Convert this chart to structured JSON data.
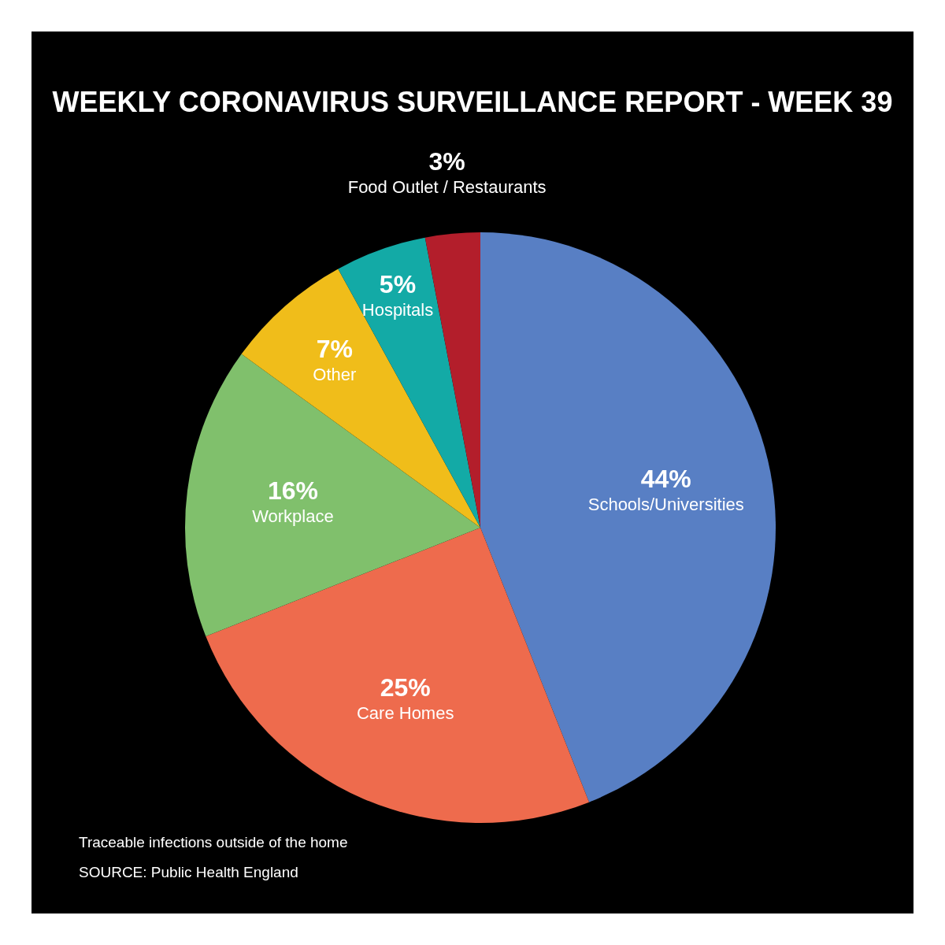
{
  "chart_data": {
    "type": "pie",
    "title": "WEEKLY CORONAVIRUS SURVEILLANCE REPORT - WEEK 39",
    "categories": [
      "Schools/Universities",
      "Care Homes",
      "Workplace",
      "Other",
      "Hospitals",
      "Food Outlet / Restaurants"
    ],
    "values": [
      44,
      25,
      16,
      7,
      5,
      3
    ],
    "colors": [
      "#587fc4",
      "#ee6b4d",
      "#80c06c",
      "#f0bd1a",
      "#13aaa6",
      "#b31e2b"
    ],
    "value_labels": [
      "44%",
      "25%",
      "16%",
      "7%",
      "5%",
      "3%"
    ],
    "annotations": [
      "Traceable infections outside of the home",
      "SOURCE: Public Health England"
    ],
    "legend": false
  }
}
